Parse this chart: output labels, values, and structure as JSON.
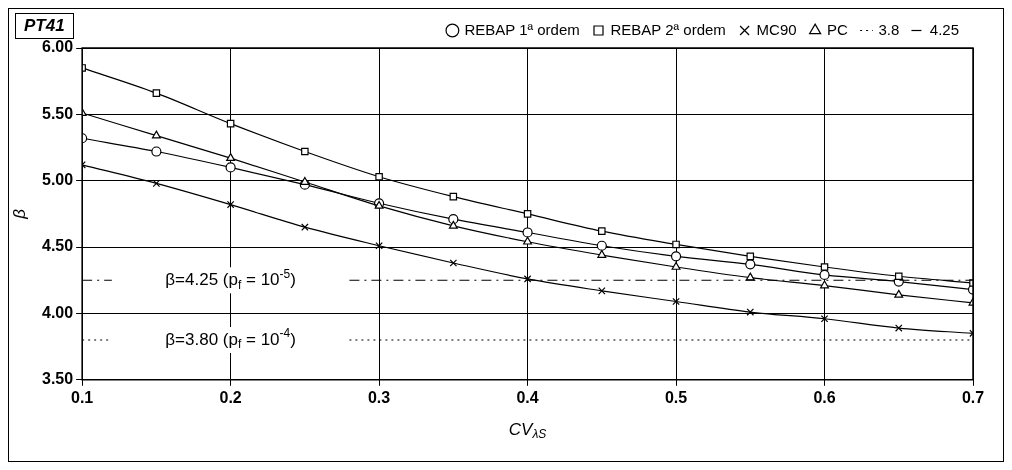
{
  "chart_data": {
    "type": "line",
    "title": "PT41",
    "xlabel": "CV$_{λS}$",
    "ylabel": "β",
    "x": [
      0.1,
      0.15,
      0.2,
      0.25,
      0.3,
      0.35,
      0.4,
      0.45,
      0.5,
      0.55,
      0.6,
      0.65,
      0.7
    ],
    "series": [
      {
        "name": "REBAP 1ª ordem",
        "color": "#000000",
        "marker": "circle",
        "values": [
          5.32,
          5.22,
          5.1,
          4.97,
          4.83,
          4.71,
          4.61,
          4.51,
          4.43,
          4.37,
          4.29,
          4.24,
          4.18
        ]
      },
      {
        "name": "REBAP 2ª ordem",
        "color": "#000000",
        "marker": "square",
        "values": [
          5.85,
          5.66,
          5.43,
          5.22,
          5.03,
          4.88,
          4.75,
          4.62,
          4.52,
          4.43,
          4.35,
          4.28,
          4.23
        ]
      },
      {
        "name": "MC90",
        "color": "#000000",
        "marker": "cross",
        "values": [
          5.12,
          4.98,
          4.82,
          4.65,
          4.51,
          4.38,
          4.26,
          4.17,
          4.09,
          4.01,
          3.96,
          3.89,
          3.85
        ]
      },
      {
        "name": "PC",
        "color": "#000000",
        "marker": "triangle",
        "values": [
          5.51,
          5.34,
          5.17,
          4.99,
          4.81,
          4.66,
          4.54,
          4.44,
          4.35,
          4.27,
          4.21,
          4.14,
          4.08
        ]
      },
      {
        "name": "3.8",
        "color": "#000000",
        "marker": "none",
        "line_style": "dotted",
        "x": [
          0.1,
          0.12,
          0.2,
          0.28,
          0.7
        ],
        "values": [
          3.8,
          3.8,
          null,
          3.8,
          3.8
        ]
      },
      {
        "name": "4.25",
        "color": "#000000",
        "marker": "none",
        "line_style": "dashed",
        "x": [
          0.1,
          0.12,
          0.2,
          0.28,
          0.7
        ],
        "values": [
          4.25,
          4.25,
          null,
          4.25,
          4.25
        ]
      }
    ],
    "xlim": [
      0.1,
      0.7
    ],
    "xticks": [
      0.1,
      0.2,
      0.3,
      0.4,
      0.5,
      0.6,
      0.7
    ],
    "ylim": [
      3.5,
      6
    ],
    "yticks": [
      {
        "value": 3.5,
        "label": "3.50"
      },
      {
        "value": 4,
        "label": "4.00"
      },
      {
        "value": 4.5,
        "label": "4.50"
      },
      {
        "value": 5,
        "label": "5.00"
      },
      {
        "value": 5.5,
        "label": "5.50"
      },
      {
        "value": 6,
        "label": "6.00"
      }
    ],
    "grid": true,
    "legend": "top",
    "annotations": [
      "β=3.80 (p$_{f}$ = 10$^{-4}$)",
      "β=4.25 (p$_{f}$ = 10$^{-5}$)"
    ]
  }
}
